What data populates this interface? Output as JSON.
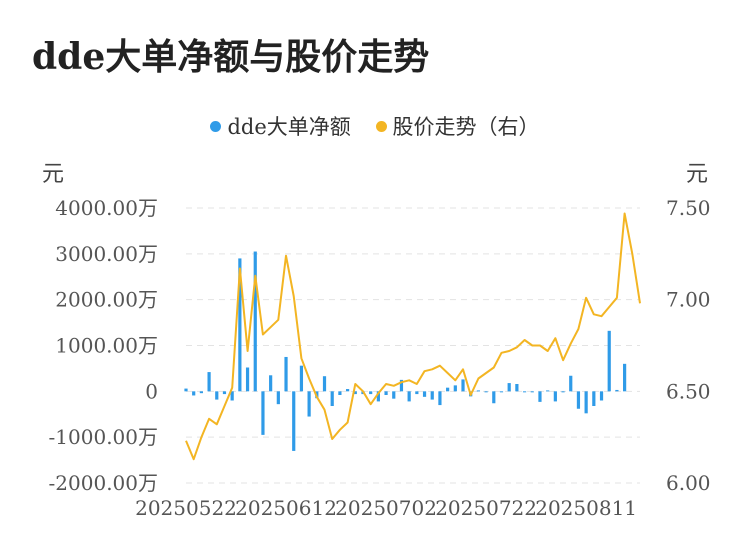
{
  "chart_data": {
    "type": "bar+line",
    "title": "dde大单净额与股价走势",
    "legend": [
      {
        "name": "dde大单净额",
        "color": "#2f9be8"
      },
      {
        "name": "股价走势（右）",
        "color": "#f3b523"
      }
    ],
    "y_left_unit": "元",
    "y_right_unit": "元",
    "y_left_ticks": [
      "4000.00万",
      "3000.00万",
      "2000.00万",
      "1000.00万",
      "0",
      "-1000.00万",
      "-2000.00万"
    ],
    "y_left_range": [
      -2000,
      4000
    ],
    "y_right_ticks": [
      "7.50",
      "7.00",
      "6.50",
      "6.00"
    ],
    "y_right_range": [
      6.0,
      7.5
    ],
    "x_tick_labels": [
      "20250522",
      "20250612",
      "20250702",
      "20250722",
      "20250811"
    ],
    "x_tick_indices": [
      0,
      13,
      26,
      39,
      52
    ],
    "series": [
      {
        "name": "dde大单净额",
        "type": "bar",
        "unit": "万",
        "values": [
          60,
          -90,
          -40,
          420,
          -180,
          -60,
          -200,
          2900,
          520,
          3050,
          -950,
          350,
          -280,
          750,
          -1300,
          560,
          -550,
          -150,
          330,
          -320,
          -80,
          50,
          -60,
          -60,
          -60,
          -220,
          -80,
          -160,
          250,
          -220,
          -60,
          -120,
          -180,
          -300,
          80,
          130,
          260,
          -110,
          20,
          -20,
          -260,
          -20,
          180,
          160,
          -20,
          -20,
          -230,
          20,
          -220,
          -20,
          340,
          -380,
          -480,
          -320,
          -200,
          1320,
          30,
          600
        ]
      },
      {
        "name": "股价走势（右）",
        "type": "line",
        "values": [
          6.23,
          6.13,
          6.25,
          6.35,
          6.32,
          6.42,
          6.52,
          7.17,
          6.72,
          7.13,
          6.81,
          6.85,
          6.89,
          7.24,
          7.02,
          6.68,
          6.57,
          6.47,
          6.4,
          6.24,
          6.29,
          6.33,
          6.54,
          6.5,
          6.43,
          6.49,
          6.54,
          6.53,
          6.55,
          6.56,
          6.54,
          6.61,
          6.62,
          6.64,
          6.6,
          6.56,
          6.62,
          6.48,
          6.57,
          6.6,
          6.63,
          6.71,
          6.72,
          6.74,
          6.78,
          6.75,
          6.75,
          6.72,
          6.79,
          6.67,
          6.76,
          6.84,
          7.01,
          6.92,
          6.91,
          6.96,
          7.01,
          7.47
        ]
      }
    ],
    "line_tail": [
      7.25,
      6.98
    ],
    "grid": "horizontal dashed",
    "legend_position": "top-center"
  }
}
